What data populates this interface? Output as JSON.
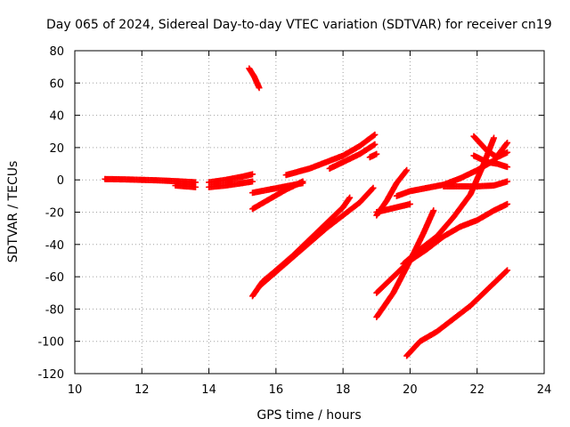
{
  "chart_data": {
    "type": "scatter",
    "title": "Day 065 of 2024, Sidereal Day-to-day VTEC variation (SDTVAR) for receiver cn19",
    "xlabel": "GPS time / hours",
    "ylabel": "SDTVAR / TECUs",
    "xlim": [
      10,
      24
    ],
    "ylim": [
      -120,
      80
    ],
    "x_ticks": [
      10,
      12,
      14,
      16,
      18,
      20,
      22,
      24
    ],
    "y_ticks": [
      -120,
      -100,
      -80,
      -60,
      -40,
      -20,
      0,
      20,
      40,
      60,
      80
    ],
    "grid": true,
    "legend": "none",
    "marker": "plus",
    "color": "#ff0000",
    "series": [
      {
        "points": [
          [
            10.9,
            0.5
          ],
          [
            11.5,
            0.3
          ],
          [
            12.0,
            0.0
          ],
          [
            12.5,
            -0.3
          ],
          [
            13.0,
            -0.8
          ],
          [
            13.6,
            -1.5
          ]
        ]
      },
      {
        "points": [
          [
            13.0,
            -3.5
          ],
          [
            13.6,
            -4.5
          ]
        ]
      },
      {
        "points": [
          [
            14.0,
            -1.5
          ],
          [
            14.5,
            0.0
          ],
          [
            15.0,
            2.0
          ],
          [
            15.3,
            3.5
          ]
        ]
      },
      {
        "points": [
          [
            14.0,
            -4.5
          ],
          [
            14.5,
            -3.5
          ],
          [
            15.0,
            -2.0
          ],
          [
            15.3,
            -1.0
          ]
        ]
      },
      {
        "points": [
          [
            15.2,
            69
          ],
          [
            15.35,
            64
          ],
          [
            15.5,
            57
          ]
        ]
      },
      {
        "points": [
          [
            15.3,
            -8
          ],
          [
            15.8,
            -6
          ],
          [
            16.3,
            -4
          ],
          [
            16.8,
            -2
          ]
        ]
      },
      {
        "points": [
          [
            15.3,
            -18
          ],
          [
            15.8,
            -12
          ],
          [
            16.3,
            -6
          ],
          [
            16.8,
            -1
          ]
        ]
      },
      {
        "points": [
          [
            16.3,
            3
          ],
          [
            17.0,
            7
          ],
          [
            17.5,
            11
          ],
          [
            18.0,
            15
          ],
          [
            18.5,
            21
          ],
          [
            18.95,
            28
          ]
        ]
      },
      {
        "points": [
          [
            17.6,
            7
          ],
          [
            18.0,
            11
          ],
          [
            18.5,
            16
          ],
          [
            18.95,
            22
          ]
        ]
      },
      {
        "points": [
          [
            18.8,
            14
          ],
          [
            19.0,
            16
          ]
        ]
      },
      {
        "points": [
          [
            15.3,
            -72
          ],
          [
            15.6,
            -63
          ],
          [
            16.0,
            -56
          ],
          [
            16.5,
            -47
          ],
          [
            17.0,
            -37
          ],
          [
            17.5,
            -27
          ],
          [
            18.0,
            -17
          ],
          [
            18.2,
            -11
          ]
        ]
      },
      {
        "points": [
          [
            15.5,
            -66
          ],
          [
            16.0,
            -57
          ],
          [
            16.5,
            -48
          ],
          [
            17.0,
            -39
          ],
          [
            17.5,
            -30
          ],
          [
            18.0,
            -22
          ],
          [
            18.5,
            -14
          ],
          [
            18.9,
            -5
          ]
        ]
      },
      {
        "points": [
          [
            19.0,
            -22
          ],
          [
            19.3,
            -13
          ],
          [
            19.6,
            -2
          ],
          [
            19.9,
            6
          ]
        ]
      },
      {
        "points": [
          [
            19.0,
            -20
          ],
          [
            19.4,
            -18
          ],
          [
            19.8,
            -16
          ],
          [
            20.0,
            -15
          ]
        ]
      },
      {
        "points": [
          [
            19.6,
            -10
          ],
          [
            20.0,
            -7
          ],
          [
            20.5,
            -5
          ],
          [
            21.0,
            -3
          ],
          [
            21.5,
            1
          ],
          [
            22.0,
            6
          ],
          [
            22.5,
            12
          ],
          [
            22.9,
            23
          ]
        ]
      },
      {
        "points": [
          [
            21.0,
            -4
          ],
          [
            21.5,
            -4
          ],
          [
            22.0,
            -4
          ],
          [
            22.5,
            -3.5
          ],
          [
            22.9,
            -1
          ]
        ]
      },
      {
        "points": [
          [
            21.9,
            27
          ],
          [
            22.3,
            18
          ],
          [
            22.6,
            14
          ],
          [
            22.9,
            17
          ]
        ]
      },
      {
        "points": [
          [
            21.9,
            15
          ],
          [
            22.3,
            11
          ],
          [
            22.6,
            10
          ],
          [
            22.9,
            8
          ]
        ]
      },
      {
        "points": [
          [
            19.0,
            -70
          ],
          [
            19.5,
            -60
          ],
          [
            20.0,
            -50
          ],
          [
            20.5,
            -43
          ],
          [
            21.0,
            -35
          ],
          [
            21.5,
            -29
          ],
          [
            22.0,
            -25
          ],
          [
            22.5,
            -19
          ],
          [
            22.9,
            -15
          ]
        ]
      },
      {
        "points": [
          [
            19.0,
            -85
          ],
          [
            19.5,
            -70
          ],
          [
            20.0,
            -50
          ],
          [
            20.4,
            -33
          ],
          [
            20.7,
            -19
          ]
        ]
      },
      {
        "points": [
          [
            19.8,
            -52
          ],
          [
            20.3,
            -43
          ],
          [
            20.8,
            -35
          ],
          [
            21.3,
            -23
          ],
          [
            21.8,
            -9
          ],
          [
            22.2,
            10
          ],
          [
            22.5,
            26
          ]
        ]
      },
      {
        "points": [
          [
            19.9,
            -109
          ],
          [
            20.3,
            -100
          ],
          [
            20.8,
            -94
          ],
          [
            21.3,
            -86
          ],
          [
            21.8,
            -78
          ],
          [
            22.3,
            -68
          ],
          [
            22.9,
            -56
          ]
        ]
      }
    ]
  }
}
